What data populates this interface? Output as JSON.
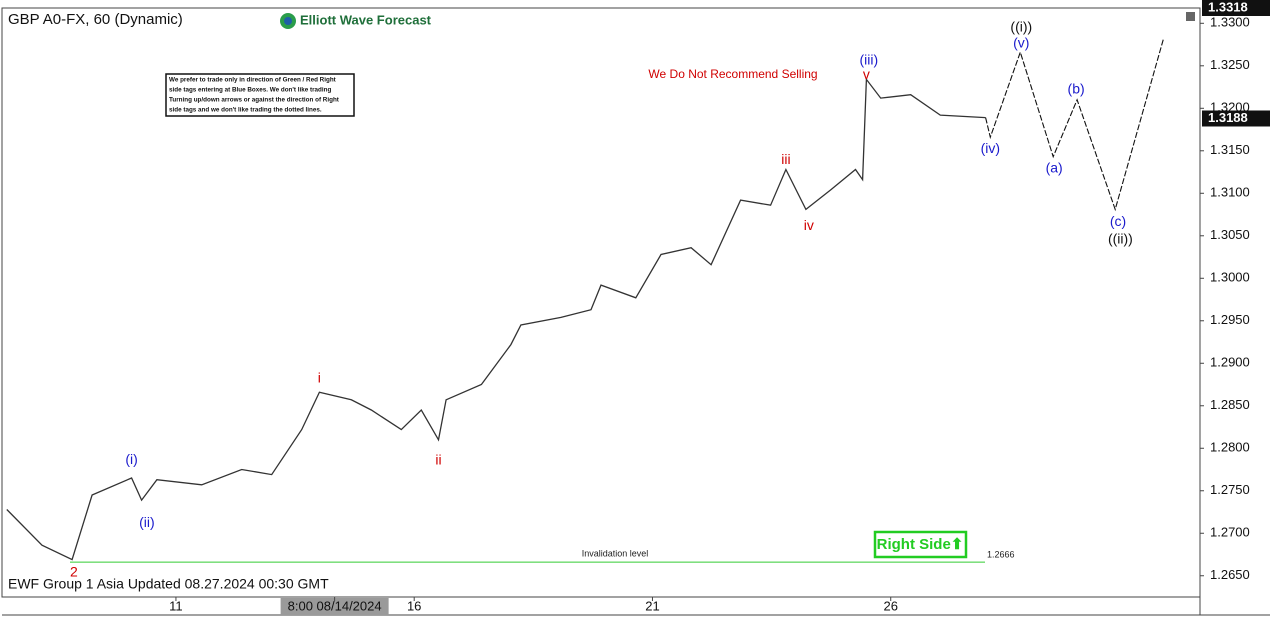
{
  "chart_data": {
    "type": "line",
    "title": "GBP A0-FX, 60 (Dynamic)",
    "x": [
      7.45,
      8.19,
      8.82,
      9.24,
      10.07,
      10.28,
      10.6,
      11.54,
      12.38,
      13.01,
      13.64,
      14.01,
      14.68,
      15.1,
      15.73,
      16.15,
      16.51,
      16.67,
      17.41,
      18.03,
      18.24,
      19.08,
      19.71,
      19.92,
      20.65,
      21.18,
      21.81,
      22.23,
      22.85,
      23.48,
      23.8,
      24.22,
      24.74,
      25.26,
      25.41,
      25.49,
      25.79,
      26.42,
      27.04,
      27.99
    ],
    "values": [
      1.2728,
      1.2686,
      1.2669,
      1.2745,
      1.2765,
      1.2739,
      1.2763,
      1.2757,
      1.2775,
      1.2769,
      1.2822,
      1.2866,
      1.2857,
      1.2845,
      1.2822,
      1.2845,
      1.281,
      1.2857,
      1.2875,
      1.2922,
      1.2945,
      1.2954,
      1.2963,
      1.2992,
      1.2977,
      1.3028,
      1.3036,
      1.3016,
      1.3092,
      1.3086,
      1.3128,
      1.3081,
      1.3104,
      1.3128,
      1.3116,
      1.3234,
      1.3212,
      1.3216,
      1.3192,
      1.3189
    ],
    "color": "#333333",
    "projection": {
      "x": [
        27.99,
        28.09,
        28.72,
        29.41,
        29.91,
        30.71,
        31.72
      ],
      "values": [
        1.3189,
        1.3166,
        1.3266,
        1.3143,
        1.321,
        1.3081,
        1.3281
      ],
      "color": "#111111"
    },
    "xlim": [
      7.35,
      32.49
    ],
    "xticks": [
      11,
      {
        "value": 14.33,
        "label": "8:00 08/14/2024"
      },
      16,
      21,
      26
    ],
    "ylim": [
      1.2625,
      1.3318
    ],
    "yticks": [
      {
        "value": 1.265,
        "label": "1.2650"
      },
      {
        "value": 1.27,
        "label": "1.2700"
      },
      {
        "value": 1.275,
        "label": "1.2750"
      },
      {
        "value": 1.28,
        "label": "1.2800"
      },
      {
        "value": 1.285,
        "label": "1.2850"
      },
      {
        "value": 1.29,
        "label": "1.2900"
      },
      {
        "value": 1.295,
        "label": "1.2950"
      },
      {
        "value": 1.3,
        "label": "1.3000"
      },
      {
        "value": 1.305,
        "label": "1.3050"
      },
      {
        "value": 1.31,
        "label": "1.3100"
      },
      {
        "value": 1.315,
        "label": "1.3150"
      },
      {
        "value": 1.32,
        "label": "1.3200"
      },
      {
        "value": 1.325,
        "label": "1.3250"
      },
      {
        "value": 1.33,
        "label": "1.3300"
      }
    ],
    "grid": false,
    "price_tags": [
      1.3318,
      1.3188
    ],
    "hline": {
      "value": 1.2666,
      "price_label": "1.2666",
      "text": "Invalidation level",
      "color": "#33cc33"
    },
    "annotations": [
      {
        "text": "2",
        "x": 8.86,
        "y": 1.26535,
        "color": "#d00000"
      },
      {
        "text": "(i)",
        "x": 10.07,
        "y": 1.2786,
        "color": "#1a1acc"
      },
      {
        "text": "(ii)",
        "x": 10.39,
        "y": 1.2712,
        "color": "#1a1acc"
      },
      {
        "text": "i",
        "x": 14.01,
        "y": 1.2882,
        "color": "#d00000"
      },
      {
        "text": "ii",
        "x": 16.51,
        "y": 1.2785,
        "color": "#d00000"
      },
      {
        "text": "iii",
        "x": 23.8,
        "y": 1.3139,
        "color": "#d00000"
      },
      {
        "text": "iv",
        "x": 24.28,
        "y": 1.3061,
        "color": "#d00000"
      },
      {
        "text": "v",
        "x": 25.49,
        "y": 1.3239,
        "color": "#d00000"
      },
      {
        "text": "(iii)",
        "x": 25.54,
        "y": 1.3256,
        "color": "#1a1acc"
      },
      {
        "text": "(iv)",
        "x": 28.09,
        "y": 1.3152,
        "color": "#1a1acc"
      },
      {
        "text": "(v)",
        "x": 28.74,
        "y": 1.3276,
        "color": "#1a1acc"
      },
      {
        "text": "((i))",
        "x": 28.74,
        "y": 1.3295,
        "color": "#111111"
      },
      {
        "text": "(a)",
        "x": 29.43,
        "y": 1.3129,
        "color": "#1a1acc"
      },
      {
        "text": "(b)",
        "x": 29.89,
        "y": 1.3222,
        "color": "#1a1acc"
      },
      {
        "text": "(c)",
        "x": 30.77,
        "y": 1.3066,
        "color": "#1a1acc"
      },
      {
        "text": "((ii))",
        "x": 30.82,
        "y": 1.3045,
        "color": "#111111"
      }
    ]
  },
  "page": {
    "brand": "Elliott Wave Forecast",
    "notice": [
      "We prefer to trade only in direction of Green / Red Right",
      "side tags entering at Blue Boxes. We don't like trading",
      "Turning up/down arrows or against the direction of Right",
      "side tags and we don't like trading the dotted lines."
    ],
    "warning": "We Do Not Recommend Selling",
    "badge": "Right Side⬆",
    "footer": "EWF Group 1 Asia Updated 08.27.2024 00:30 GMT"
  }
}
